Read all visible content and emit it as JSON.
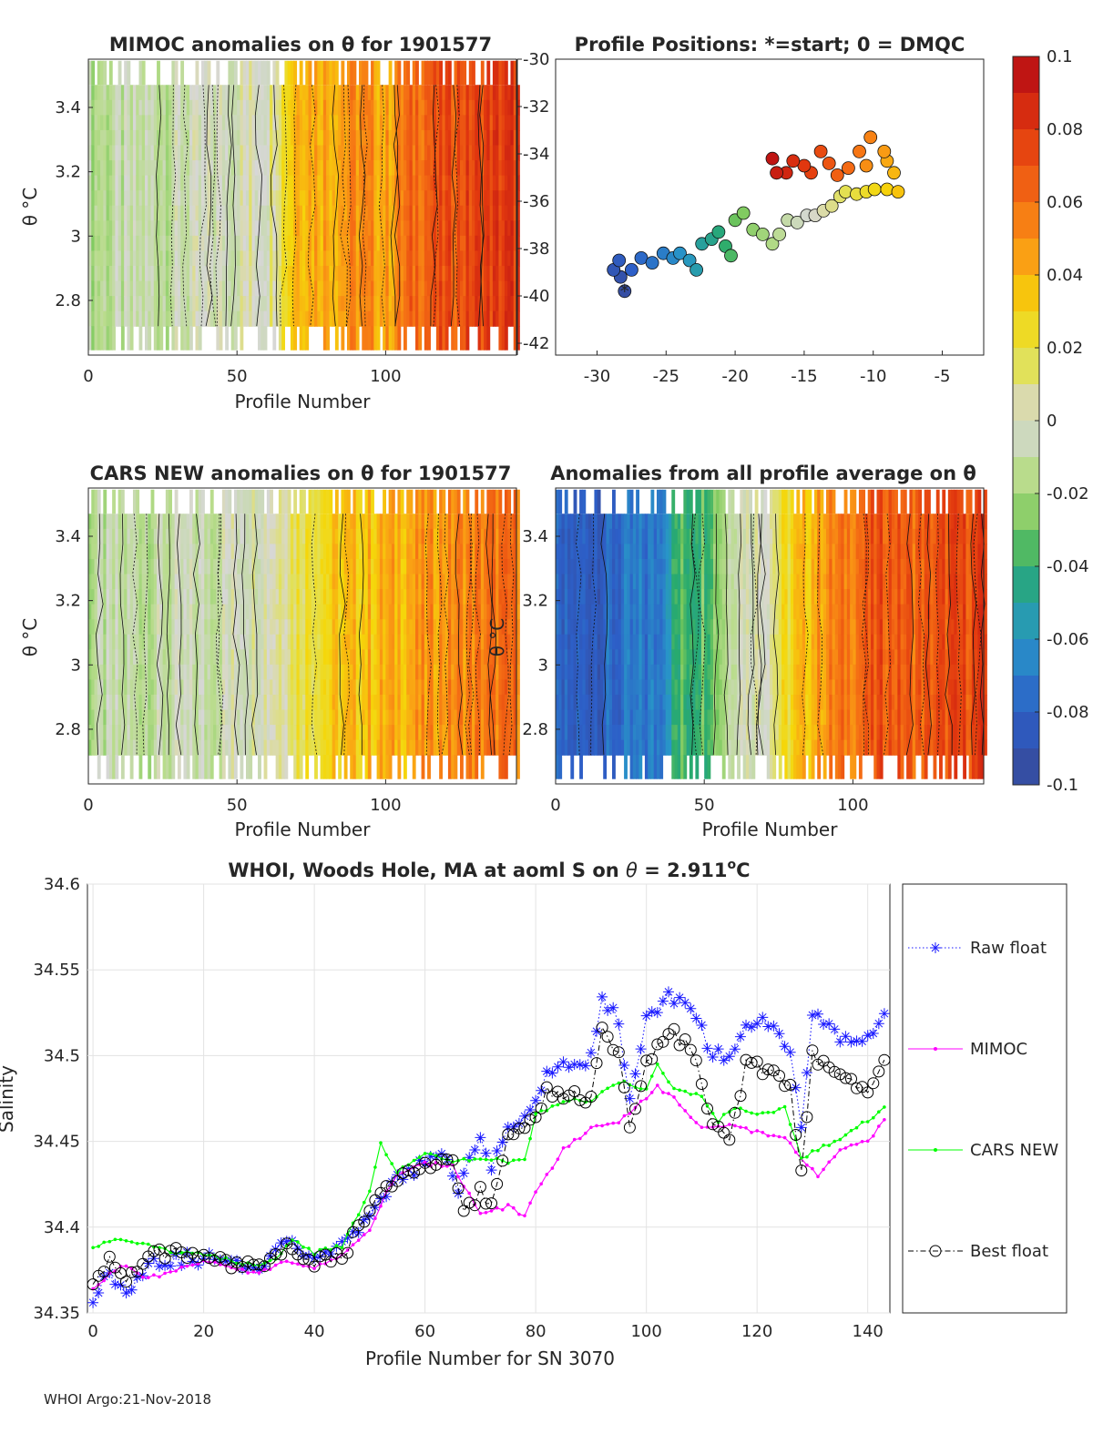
{
  "figure": {
    "footer": "WHOI Argo:21-Nov-2018"
  },
  "colorbar": {
    "min": -0.1,
    "max": 0.1,
    "ticks": [
      "0.1",
      "0.08",
      "0.06",
      "0.04",
      "0.02",
      "0",
      "-0.02",
      "-0.04",
      "-0.06",
      "-0.08",
      "-0.1"
    ]
  },
  "chart_data": [
    {
      "id": "mimoc",
      "type": "heatmap",
      "title": "MIMOC anomalies on θ  for 1901577",
      "xlabel": "Profile Number",
      "ylabel": "θ °C",
      "xlim": [
        0,
        144
      ],
      "ylim": [
        2.63,
        3.55
      ],
      "xticks": [
        "0",
        "50",
        "100"
      ],
      "yticks": [
        "2.8",
        "3",
        "3.2",
        "3.4"
      ],
      "anomaly_profile": [
        [
          0,
          -0.015
        ],
        [
          20,
          -0.01
        ],
        [
          40,
          -0.005
        ],
        [
          50,
          0
        ],
        [
          60,
          0.005
        ],
        [
          70,
          0.045
        ],
        [
          80,
          0.045
        ],
        [
          90,
          0.05
        ],
        [
          100,
          0.045
        ],
        [
          110,
          0.065
        ],
        [
          120,
          0.07
        ],
        [
          130,
          0.075
        ],
        [
          144,
          0.08
        ]
      ]
    },
    {
      "id": "positions",
      "type": "scatter",
      "title": "Profile Positions: *=start; 0 = DMQC",
      "xlim": [
        -33,
        -2
      ],
      "ylim": [
        -42.5,
        -30
      ],
      "xticks": [
        "-30",
        "-25",
        "-20",
        "-15",
        "-10",
        "-5"
      ],
      "yticks": [
        "-30",
        "-32",
        "-34",
        "-36",
        "-38",
        "-40",
        "-42"
      ],
      "track": [
        [
          -28,
          -39.8
        ],
        [
          -28.3,
          -39.2
        ],
        [
          -28.8,
          -38.9
        ],
        [
          -28.4,
          -38.5
        ],
        [
          -27.5,
          -38.9
        ],
        [
          -26.8,
          -38.4
        ],
        [
          -26,
          -38.6
        ],
        [
          -25.2,
          -38.2
        ],
        [
          -24.5,
          -38.4
        ],
        [
          -24,
          -38.2
        ],
        [
          -23.3,
          -38.5
        ],
        [
          -22.8,
          -38.9
        ],
        [
          -22.4,
          -37.8
        ],
        [
          -21.7,
          -37.6
        ],
        [
          -21.2,
          -37.3
        ],
        [
          -20.7,
          -37.9
        ],
        [
          -20.3,
          -38.3
        ],
        [
          -20,
          -36.8
        ],
        [
          -19.4,
          -36.5
        ],
        [
          -18.7,
          -37.2
        ],
        [
          -18,
          -37.4
        ],
        [
          -17.3,
          -37.8
        ],
        [
          -16.8,
          -37.4
        ],
        [
          -16.2,
          -36.8
        ],
        [
          -15.5,
          -36.9
        ],
        [
          -14.8,
          -36.6
        ],
        [
          -14.2,
          -36.6
        ],
        [
          -13.6,
          -36.4
        ],
        [
          -13,
          -36.2
        ],
        [
          -12.4,
          -35.8
        ],
        [
          -12,
          -35.6
        ],
        [
          -11.2,
          -35.7
        ],
        [
          -10.5,
          -35.6
        ],
        [
          -9.9,
          -35.5
        ],
        [
          -9,
          -35.5
        ],
        [
          -8.2,
          -35.6
        ],
        [
          -8.5,
          -34.8
        ],
        [
          -9,
          -34.3
        ],
        [
          -9.2,
          -33.9
        ],
        [
          -10.5,
          -34.5
        ],
        [
          -10.2,
          -33.3
        ],
        [
          -11,
          -33.9
        ],
        [
          -11.8,
          -34.6
        ],
        [
          -12.6,
          -34.9
        ],
        [
          -13.2,
          -34.4
        ],
        [
          -13.8,
          -33.9
        ],
        [
          -14.5,
          -34.8
        ],
        [
          -15,
          -34.5
        ],
        [
          -15.8,
          -34.3
        ],
        [
          -16.3,
          -34.8
        ],
        [
          -17,
          -34.8
        ],
        [
          -17.3,
          -34.2
        ]
      ]
    },
    {
      "id": "cars",
      "type": "heatmap",
      "title": "CARS NEW anomalies on θ for 1901577",
      "xlabel": "Profile Number",
      "ylabel": "θ °C",
      "xlim": [
        0,
        144
      ],
      "ylim": [
        2.63,
        3.55
      ],
      "xticks": [
        "0",
        "50",
        "100"
      ],
      "yticks": [
        "2.8",
        "3",
        "3.2",
        "3.4"
      ],
      "anomaly_profile": [
        [
          0,
          -0.015
        ],
        [
          20,
          -0.01
        ],
        [
          40,
          -0.008
        ],
        [
          50,
          0.0
        ],
        [
          60,
          0.005
        ],
        [
          70,
          0.02
        ],
        [
          80,
          0.03
        ],
        [
          90,
          0.035
        ],
        [
          100,
          0.04
        ],
        [
          110,
          0.045
        ],
        [
          120,
          0.05
        ],
        [
          130,
          0.055
        ],
        [
          144,
          0.06
        ]
      ]
    },
    {
      "id": "allavg",
      "type": "heatmap",
      "title": "Anomalies from all profile average on θ",
      "xlabel": "Profile Number",
      "ylabel": "θ °C",
      "xlim": [
        0,
        144
      ],
      "ylim": [
        2.63,
        3.55
      ],
      "xticks": [
        "0",
        "50",
        "100"
      ],
      "yticks": [
        "2.8",
        "3",
        "3.2",
        "3.4"
      ],
      "anomaly_profile": [
        [
          0,
          -0.085
        ],
        [
          15,
          -0.08
        ],
        [
          34,
          -0.07
        ],
        [
          40,
          -0.04
        ],
        [
          50,
          -0.03
        ],
        [
          55,
          -0.02
        ],
        [
          60,
          0.0
        ],
        [
          70,
          0.005
        ],
        [
          80,
          0.03
        ],
        [
          90,
          0.05
        ],
        [
          100,
          0.06
        ],
        [
          110,
          0.07
        ],
        [
          120,
          0.065
        ],
        [
          130,
          0.07
        ],
        [
          144,
          0.075
        ]
      ]
    },
    {
      "id": "salinity",
      "type": "line",
      "title": "WHOI, Woods Hole, MA at aoml S on θ = 2.911°C",
      "title_main": "WHOI, Woods Hole, MA at aoml S on ",
      "title_theta": "θ",
      "title_eq": " = 2.911",
      "title_sup": "o",
      "title_unit": "C",
      "xlabel": "Profile Number for SN 3070",
      "ylabel": "Salinity",
      "xlim": [
        -1,
        144
      ],
      "ylim": [
        34.35,
        34.6
      ],
      "xticks": [
        "0",
        "20",
        "40",
        "60",
        "80",
        "100",
        "120",
        "140"
      ],
      "yticks": [
        "34.35",
        "34.4",
        "34.45",
        "34.5",
        "34.55",
        "34.6"
      ],
      "series": [
        {
          "name": "Raw float",
          "color": "#1a1aff",
          "knots": [
            [
              0,
              34.36
            ],
            [
              3,
              34.373
            ],
            [
              6,
              34.362
            ],
            [
              10,
              34.38
            ],
            [
              20,
              34.382
            ],
            [
              30,
              34.377
            ],
            [
              35,
              34.393
            ],
            [
              40,
              34.383
            ],
            [
              45,
              34.388
            ],
            [
              50,
              34.405
            ],
            [
              55,
              34.428
            ],
            [
              60,
              34.438
            ],
            [
              64,
              34.44
            ],
            [
              66,
              34.42
            ],
            [
              68,
              34.44
            ],
            [
              70,
              34.45
            ],
            [
              72,
              34.435
            ],
            [
              75,
              34.46
            ],
            [
              80,
              34.47
            ],
            [
              82,
              34.49
            ],
            [
              85,
              34.493
            ],
            [
              88,
              34.495
            ],
            [
              90,
              34.5
            ],
            [
              92,
              34.535
            ],
            [
              95,
              34.52
            ],
            [
              97,
              34.475
            ],
            [
              100,
              34.52
            ],
            [
              104,
              34.535
            ],
            [
              108,
              34.53
            ],
            [
              112,
              34.5
            ],
            [
              115,
              34.5
            ],
            [
              118,
              34.515
            ],
            [
              122,
              34.52
            ],
            [
              126,
              34.505
            ],
            [
              128,
              34.46
            ],
            [
              130,
              34.525
            ],
            [
              135,
              34.51
            ],
            [
              140,
              34.51
            ],
            [
              143,
              34.527
            ]
          ]
        },
        {
          "name": "MIMOC",
          "color": "#ff00ff",
          "knots": [
            [
              0,
              34.363
            ],
            [
              5,
              34.378
            ],
            [
              10,
              34.37
            ],
            [
              20,
              34.38
            ],
            [
              30,
              34.373
            ],
            [
              35,
              34.38
            ],
            [
              40,
              34.377
            ],
            [
              45,
              34.383
            ],
            [
              50,
              34.398
            ],
            [
              53,
              34.42
            ],
            [
              55,
              34.43
            ],
            [
              60,
              34.437
            ],
            [
              65,
              34.436
            ],
            [
              70,
              34.408
            ],
            [
              75,
              34.412
            ],
            [
              78,
              34.406
            ],
            [
              80,
              34.42
            ],
            [
              85,
              34.445
            ],
            [
              90,
              34.458
            ],
            [
              95,
              34.462
            ],
            [
              100,
              34.475
            ],
            [
              102,
              34.482
            ],
            [
              105,
              34.475
            ],
            [
              110,
              34.458
            ],
            [
              115,
              34.46
            ],
            [
              120,
              34.455
            ],
            [
              125,
              34.452
            ],
            [
              128,
              34.44
            ],
            [
              131,
              34.43
            ],
            [
              135,
              34.445
            ],
            [
              140,
              34.45
            ],
            [
              143,
              34.462
            ]
          ]
        },
        {
          "name": "CARS NEW",
          "color": "#00ff00",
          "knots": [
            [
              0,
              34.388
            ],
            [
              5,
              34.393
            ],
            [
              10,
              34.39
            ],
            [
              15,
              34.385
            ],
            [
              20,
              34.384
            ],
            [
              30,
              34.377
            ],
            [
              33,
              34.382
            ],
            [
              36,
              34.392
            ],
            [
              40,
              34.385
            ],
            [
              45,
              34.389
            ],
            [
              50,
              34.42
            ],
            [
              52,
              34.448
            ],
            [
              55,
              34.432
            ],
            [
              60,
              34.443
            ],
            [
              65,
              34.438
            ],
            [
              70,
              34.44
            ],
            [
              72,
              34.44
            ],
            [
              75,
              34.437
            ],
            [
              78,
              34.44
            ],
            [
              80,
              34.465
            ],
            [
              85,
              34.474
            ],
            [
              90,
              34.474
            ],
            [
              95,
              34.485
            ],
            [
              100,
              34.48
            ],
            [
              102,
              34.494
            ],
            [
              105,
              34.48
            ],
            [
              110,
              34.477
            ],
            [
              113,
              34.462
            ],
            [
              116,
              34.47
            ],
            [
              120,
              34.465
            ],
            [
              125,
              34.47
            ],
            [
              128,
              34.44
            ],
            [
              131,
              34.445
            ],
            [
              135,
              34.452
            ],
            [
              140,
              34.462
            ],
            [
              143,
              34.47
            ]
          ]
        },
        {
          "name": "Best float",
          "color": "#000000",
          "knots": [
            [
              0,
              34.367
            ],
            [
              3,
              34.382
            ],
            [
              6,
              34.368
            ],
            [
              10,
              34.382
            ],
            [
              15,
              34.385
            ],
            [
              20,
              34.381
            ],
            [
              30,
              34.375
            ],
            [
              35,
              34.388
            ],
            [
              40,
              34.38
            ],
            [
              45,
              34.382
            ],
            [
              50,
              34.41
            ],
            [
              55,
              34.428
            ],
            [
              60,
              34.435
            ],
            [
              65,
              34.438
            ],
            [
              67,
              34.41
            ],
            [
              70,
              34.42
            ],
            [
              72,
              34.415
            ],
            [
              75,
              34.455
            ],
            [
              80,
              34.465
            ],
            [
              82,
              34.48
            ],
            [
              85,
              34.478
            ],
            [
              90,
              34.475
            ],
            [
              92,
              34.515
            ],
            [
              95,
              34.5
            ],
            [
              97,
              34.455
            ],
            [
              100,
              34.495
            ],
            [
              104,
              34.515
            ],
            [
              108,
              34.505
            ],
            [
              112,
              34.46
            ],
            [
              115,
              34.45
            ],
            [
              118,
              34.495
            ],
            [
              122,
              34.49
            ],
            [
              126,
              34.48
            ],
            [
              128,
              34.43
            ],
            [
              130,
              34.5
            ],
            [
              135,
              34.49
            ],
            [
              140,
              34.478
            ],
            [
              143,
              34.495
            ]
          ]
        }
      ]
    }
  ]
}
